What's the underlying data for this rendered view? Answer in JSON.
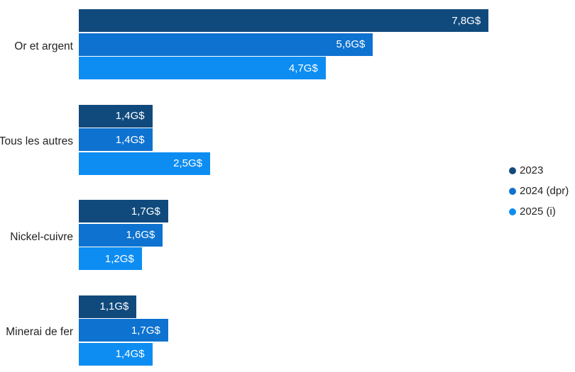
{
  "chart_data": {
    "type": "bar",
    "orientation": "horizontal",
    "title": "",
    "xlabel": "",
    "ylabel": "",
    "unit": "G$",
    "value_format": "french decimal comma with G$ suffix",
    "grid": false,
    "axes_visible": false,
    "legend_position": "right",
    "xlim": [
      0,
      7.8
    ],
    "categories": [
      "Or et argent",
      "Tous les autres",
      "Nickel-cuivre",
      "Minerai de fer"
    ],
    "series": [
      {
        "name": "2023",
        "color": "#104a7d",
        "values": [
          7.8,
          1.4,
          1.7,
          1.1
        ],
        "value_labels": [
          "7,8G$",
          "1,4G$",
          "1,7G$",
          "1,1G$"
        ]
      },
      {
        "name": "2024 (dpr)",
        "color": "#0e72d0",
        "values": [
          5.6,
          1.4,
          1.6,
          1.7
        ],
        "value_labels": [
          "5,6G$",
          "1,4G$",
          "1,6G$",
          "1,7G$"
        ]
      },
      {
        "name": "2025 (i)",
        "color": "#0d8df2",
        "values": [
          4.7,
          2.5,
          1.2,
          1.4
        ],
        "value_labels": [
          "4,7G$",
          "2,5G$",
          "1,2G$",
          "1,4G$"
        ]
      }
    ]
  },
  "legend": {
    "items": [
      {
        "label": "2023",
        "color": "#104a7d"
      },
      {
        "label": "2024 (dpr)",
        "color": "#0e72d0"
      },
      {
        "label": "2025 (i)",
        "color": "#0d8df2"
      }
    ]
  },
  "layout_colors": {
    "background": "#ffffff",
    "text": "#252423",
    "bar_value_text": "#ffffff"
  }
}
